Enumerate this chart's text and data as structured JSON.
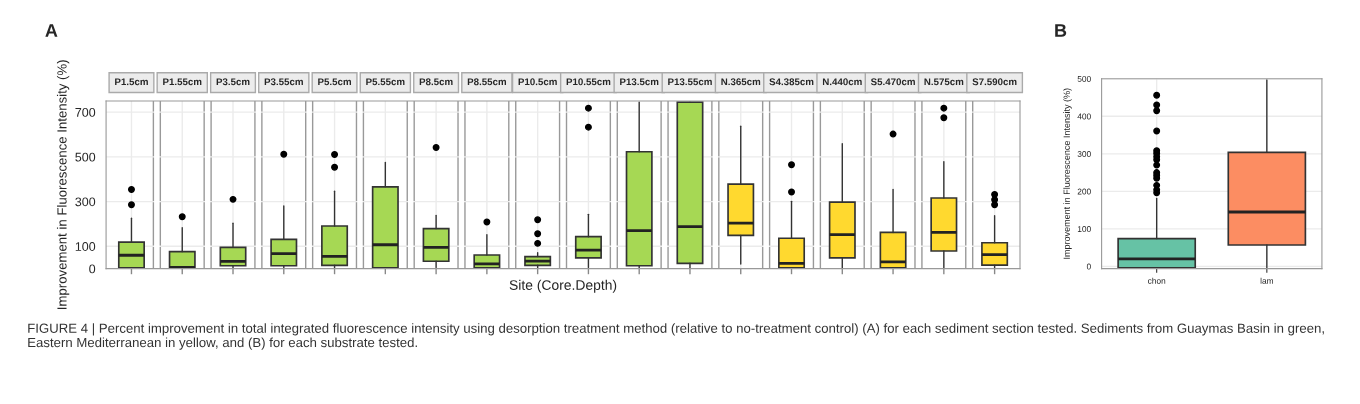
{
  "chart_data": [
    {
      "type": "box",
      "title": "A",
      "xlabel": "Site (Core.Depth)",
      "ylabel": "Improvement in Fluorescence Intensity (%)",
      "categories": [
        "P1.5cm",
        "P1.55cm",
        "P3.5cm",
        "P3.55cm",
        "P5.5cm",
        "P5.55cm",
        "P8.5cm",
        "P8.55cm",
        "P10.5cm",
        "P10.55cm",
        "P13.5cm",
        "P13.55cm",
        "N.365cm",
        "S4.385cm",
        "N.440cm",
        "S5.470cm",
        "N.575cm",
        "S7.590cm"
      ],
      "colors": [
        "#a6d854",
        "#a6d854",
        "#a6d854",
        "#a6d854",
        "#a6d854",
        "#a6d854",
        "#a6d854",
        "#a6d854",
        "#a6d854",
        "#a6d854",
        "#a6d854",
        "#a6d854",
        "#ffd92f",
        "#ffd92f",
        "#ffd92f",
        "#ffd92f",
        "#ffd92f",
        "#ffd92f"
      ],
      "boxes": [
        {
          "low": 4,
          "q1": 4,
          "median": 60,
          "q3": 119,
          "high": 226,
          "outliers": [
            286,
            354
          ]
        },
        {
          "low": 4,
          "q1": 4,
          "median": 6,
          "q3": 76,
          "high": 183,
          "outliers": [
            232
          ]
        },
        {
          "low": 0,
          "q1": 13,
          "median": 33,
          "q3": 95,
          "high": 203,
          "outliers": [
            310
          ]
        },
        {
          "low": 0,
          "q1": 13,
          "median": 67,
          "q3": 131,
          "high": 280,
          "outliers": [
            512
          ]
        },
        {
          "low": 0,
          "q1": 15,
          "median": 55,
          "q3": 191,
          "high": 346,
          "outliers": [
            454,
            511
          ]
        },
        {
          "low": 4,
          "q1": 4,
          "median": 107,
          "q3": 366,
          "high": 475
        },
        {
          "low": 5,
          "q1": 33,
          "median": 95,
          "q3": 179,
          "high": 238,
          "outliers": [
            542
          ]
        },
        {
          "low": 4,
          "q1": 4,
          "median": 21,
          "q3": 61,
          "high": 152,
          "outliers": [
            209
          ]
        },
        {
          "low": 0,
          "q1": 15,
          "median": 34,
          "q3": 54,
          "high": 71,
          "outliers": [
            113,
            156,
            219
          ]
        },
        {
          "low": 5,
          "q1": 48,
          "median": 83,
          "q3": 143,
          "high": 243,
          "outliers": [
            633,
            718
          ]
        },
        {
          "low": 0,
          "q1": 13,
          "median": 170,
          "q3": 523,
          "high": 745
        },
        {
          "low": 0,
          "q1": 24,
          "median": 188,
          "q3": 745,
          "high": 745
        },
        {
          "low": 21,
          "q1": 149,
          "median": 204,
          "q3": 378,
          "high": 637
        },
        {
          "low": 4,
          "q1": 4,
          "median": 24,
          "q3": 136,
          "high": 301,
          "outliers": [
            343,
            465
          ]
        },
        {
          "low": 0,
          "q1": 48,
          "median": 152,
          "q3": 298,
          "high": 559
        },
        {
          "low": 4,
          "q1": 4,
          "median": 30,
          "q3": 162,
          "high": 354,
          "outliers": [
            602
          ]
        },
        {
          "low": 0,
          "q1": 79,
          "median": 162,
          "q3": 316,
          "high": 478,
          "outliers": [
            675,
            718
          ]
        },
        {
          "low": 0,
          "q1": 16,
          "median": 63,
          "q3": 116,
          "high": 237,
          "outliers": [
            286,
            308,
            332
          ]
        }
      ],
      "ylim": [
        0,
        750
      ],
      "yticks": [
        0,
        100,
        300,
        500,
        700
      ],
      "grid": true,
      "annotations": [
        "FIGURE 4 | Percent improvement in total integrated fluorescence intensity using desorption treatment method (relative to no-treatment control) (A) for each sediment section tested. Sediments from Guaymas Basin in green, Eastern Mediterranean in yellow, and (B) for each substrate tested."
      ]
    },
    {
      "type": "box",
      "title": "B",
      "ylabel": "Improvement in Fluorescence Intensity (%)",
      "categories": [
        "chon",
        "lam"
      ],
      "colors": [
        "#66c2a5",
        "#fc8d62"
      ],
      "boxes": [
        {
          "low": -5,
          "q1": -4,
          "median": 20,
          "q3": 74,
          "high": 181,
          "outliers": [
            196,
            204,
            216,
            235,
            243,
            250,
            270,
            284,
            292,
            301,
            308,
            361,
            415,
            430,
            456
          ]
        },
        {
          "low": -5,
          "q1": 57,
          "median": 145,
          "q3": 304,
          "high": 497
        }
      ],
      "ylim": [
        -6,
        500
      ],
      "yticks": [
        0,
        100,
        200,
        300,
        400,
        500
      ],
      "grid": true
    }
  ]
}
